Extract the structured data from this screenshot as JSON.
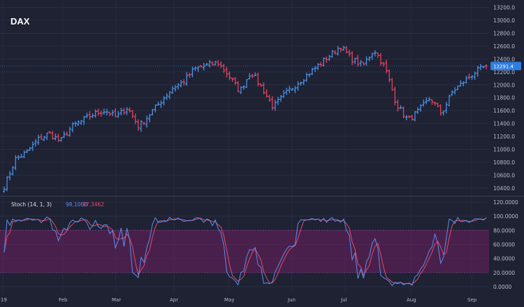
{
  "chart_data": [
    {
      "type": "ohlc",
      "title": "DAX",
      "ylim": [
        10300,
        13250
      ],
      "y_ticks": [
        "13200.0",
        "13000.0",
        "12800.0",
        "12600.0",
        "12400.0",
        "12200.0",
        "12000.0",
        "11800.0",
        "11600.0",
        "11400.0",
        "11200.0",
        "11000.0",
        "10800.0",
        "10600.0",
        "10400.0"
      ],
      "y_tick_values": [
        13200,
        13000,
        12800,
        12600,
        12400,
        12200,
        12000,
        11800,
        11600,
        11400,
        11200,
        11000,
        10800,
        10600,
        10400
      ],
      "x_labels": [
        "19",
        "Feb",
        "Mar",
        "Apr",
        "May",
        "Jun",
        "Jul",
        "Aug",
        "Sep"
      ],
      "last_price_label": "12291.4",
      "last_price": 12291.4,
      "up_color": "#4a90e2",
      "down_color": "#e5435e",
      "background": "#1e2233",
      "grid": true,
      "anchor_closes": [
        10420,
        10850,
        10950,
        11150,
        11250,
        11120,
        11350,
        11450,
        11550,
        11600,
        11500,
        11650,
        11350,
        11550,
        11750,
        11950,
        12050,
        12250,
        12300,
        12350,
        12150,
        11900,
        12200,
        11950,
        11650,
        11850,
        12000,
        12150,
        12300,
        12450,
        12600,
        12400,
        12300,
        12550,
        12250,
        11700,
        11450,
        11600,
        11800,
        11550,
        11900,
        12050,
        12200,
        12291.4
      ],
      "session_count": 170
    },
    {
      "type": "line",
      "title": "Stoch (14, 1, 3)",
      "ylim": [
        -10,
        125
      ],
      "y_ticks": [
        "120.0000",
        "100.0000",
        "80.0000",
        "60.0000",
        "40.0000",
        "20.0000",
        "0.0000"
      ],
      "y_tick_values": [
        120,
        100,
        80,
        60,
        40,
        20,
        0
      ],
      "band": [
        20,
        80
      ],
      "band_color": "#6b1f5e",
      "series": [
        {
          "name": "Stoch (14, 1, 3)",
          "color": "#5b8ff0",
          "last": "98.1000"
        },
        {
          "color": "#e54b6a",
          "last": "97.3462"
        }
      ]
    }
  ]
}
